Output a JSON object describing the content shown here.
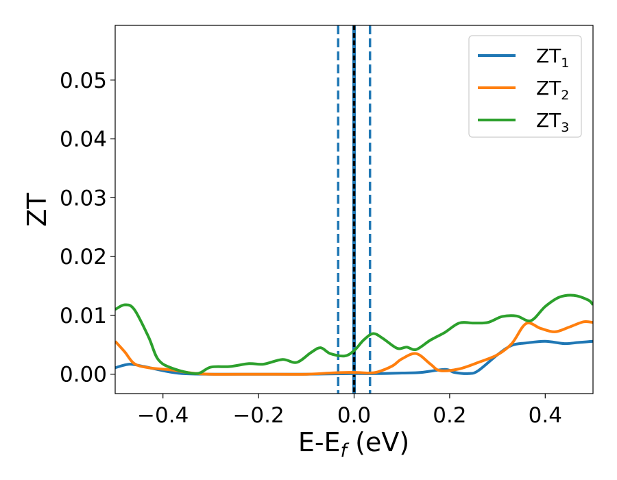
{
  "chart_data": {
    "type": "line",
    "title": "",
    "xlabel": {
      "main": "E-E",
      "sub": "f",
      "suffix": " (eV)"
    },
    "ylabel": "ZT",
    "xlim": [
      -0.5,
      0.5
    ],
    "ylim": [
      -0.0033,
      0.0593
    ],
    "xticks": [
      -0.4,
      -0.2,
      0.0,
      0.2,
      0.4
    ],
    "xtick_labels": [
      "−0.4",
      "−0.2",
      "0.0",
      "0.2",
      "0.4"
    ],
    "yticks": [
      0.0,
      0.01,
      0.02,
      0.03,
      0.04,
      0.05
    ],
    "ytick_labels": [
      "0.00",
      "0.01",
      "0.02",
      "0.03",
      "0.04",
      "0.05"
    ],
    "grid": false,
    "legend_position": "top-right",
    "vertical_lines": [
      {
        "x": -0.0333,
        "style": "dashed",
        "color": "#1f77b4"
      },
      {
        "x": 0.0333,
        "style": "dashed",
        "color": "#1f77b4"
      },
      {
        "x": 0.0,
        "style": "solid",
        "color": "#1f77b4"
      },
      {
        "x": 0.0,
        "style": "dashed",
        "color": "#000000"
      }
    ],
    "series": [
      {
        "name": "ZT",
        "name_sub": "1",
        "color": "#1f77b4",
        "points": [
          [
            -0.5,
            0.0011
          ],
          [
            -0.47,
            0.0017
          ],
          [
            -0.44,
            0.0013
          ],
          [
            -0.4,
            0.0006
          ],
          [
            -0.36,
            0.0001
          ],
          [
            -0.3,
            0.0
          ],
          [
            -0.2,
            0.0
          ],
          [
            -0.1,
            0.0
          ],
          [
            0.0,
            0.0001
          ],
          [
            0.05,
            0.0001
          ],
          [
            0.1,
            0.0002
          ],
          [
            0.14,
            0.0003
          ],
          [
            0.19,
            0.0008
          ],
          [
            0.21,
            0.0003
          ],
          [
            0.24,
            0.0001
          ],
          [
            0.26,
            0.0006
          ],
          [
            0.3,
            0.0033
          ],
          [
            0.33,
            0.0049
          ],
          [
            0.36,
            0.0053
          ],
          [
            0.4,
            0.0056
          ],
          [
            0.44,
            0.0052
          ],
          [
            0.47,
            0.0054
          ],
          [
            0.5,
            0.0056
          ]
        ]
      },
      {
        "name": "ZT",
        "name_sub": "2",
        "color": "#ff7f0e",
        "points": [
          [
            -0.5,
            0.0056
          ],
          [
            -0.48,
            0.0038
          ],
          [
            -0.46,
            0.0018
          ],
          [
            -0.43,
            0.0011
          ],
          [
            -0.38,
            0.0007
          ],
          [
            -0.34,
            0.0002
          ],
          [
            -0.3,
            0.0
          ],
          [
            -0.2,
            0.0
          ],
          [
            -0.1,
            0.0
          ],
          [
            -0.05,
            0.0002
          ],
          [
            0.0,
            0.0003
          ],
          [
            0.03,
            0.0002
          ],
          [
            0.05,
            0.0004
          ],
          [
            0.08,
            0.0014
          ],
          [
            0.1,
            0.0026
          ],
          [
            0.13,
            0.0035
          ],
          [
            0.16,
            0.0017
          ],
          [
            0.18,
            0.0006
          ],
          [
            0.22,
            0.0009
          ],
          [
            0.26,
            0.002
          ],
          [
            0.3,
            0.0033
          ],
          [
            0.33,
            0.0052
          ],
          [
            0.36,
            0.0086
          ],
          [
            0.39,
            0.0078
          ],
          [
            0.42,
            0.0072
          ],
          [
            0.45,
            0.008
          ],
          [
            0.48,
            0.0089
          ],
          [
            0.5,
            0.0088
          ]
        ]
      },
      {
        "name": "ZT",
        "name_sub": "3",
        "color": "#2ca02c",
        "points": [
          [
            -0.5,
            0.011
          ],
          [
            -0.48,
            0.0118
          ],
          [
            -0.46,
            0.011
          ],
          [
            -0.43,
            0.0063
          ],
          [
            -0.41,
            0.0025
          ],
          [
            -0.38,
            0.001
          ],
          [
            -0.33,
            0.0001
          ],
          [
            -0.3,
            0.0012
          ],
          [
            -0.26,
            0.0013
          ],
          [
            -0.22,
            0.0018
          ],
          [
            -0.19,
            0.0017
          ],
          [
            -0.15,
            0.0025
          ],
          [
            -0.12,
            0.002
          ],
          [
            -0.09,
            0.0037
          ],
          [
            -0.07,
            0.0045
          ],
          [
            -0.05,
            0.0035
          ],
          [
            -0.02,
            0.0031
          ],
          [
            0.0,
            0.004
          ],
          [
            0.02,
            0.0058
          ],
          [
            0.04,
            0.0069
          ],
          [
            0.06,
            0.0061
          ],
          [
            0.09,
            0.0044
          ],
          [
            0.11,
            0.0046
          ],
          [
            0.13,
            0.0042
          ],
          [
            0.16,
            0.0058
          ],
          [
            0.19,
            0.0071
          ],
          [
            0.22,
            0.0087
          ],
          [
            0.25,
            0.0087
          ],
          [
            0.28,
            0.0088
          ],
          [
            0.31,
            0.0098
          ],
          [
            0.34,
            0.0099
          ],
          [
            0.37,
            0.0091
          ],
          [
            0.4,
            0.0115
          ],
          [
            0.43,
            0.0131
          ],
          [
            0.46,
            0.0134
          ],
          [
            0.49,
            0.0126
          ],
          [
            0.5,
            0.0118
          ]
        ]
      }
    ]
  }
}
